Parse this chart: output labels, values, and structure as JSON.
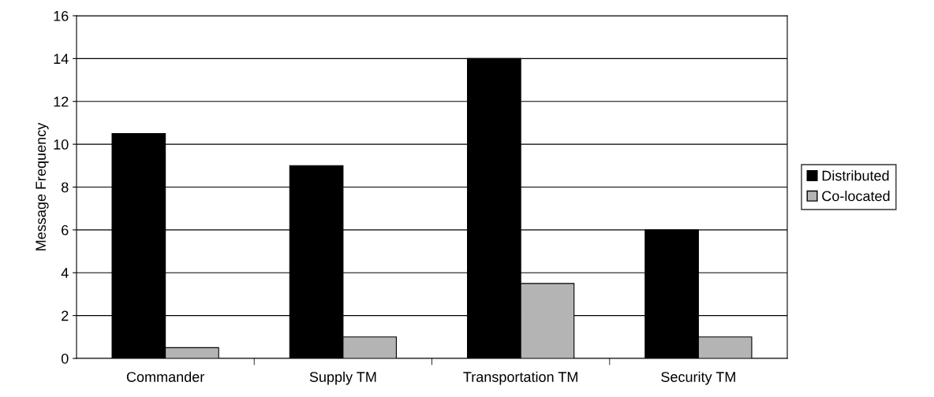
{
  "chart_data": {
    "type": "bar",
    "ylabel": "Message Frequency",
    "categories": [
      "Commander",
      "Supply TM",
      "Transportation TM",
      "Security TM"
    ],
    "series": [
      {
        "name": "Distributed",
        "color": "#000000",
        "values": [
          10.5,
          9,
          14,
          6
        ]
      },
      {
        "name": "Co-located",
        "color": "#b4b4b4",
        "values": [
          0.5,
          1,
          3.5,
          1
        ]
      }
    ],
    "ylim": [
      0,
      16
    ],
    "yticks": [
      0,
      2,
      4,
      6,
      8,
      10,
      12,
      14,
      16
    ],
    "grid": "y",
    "legend": "right"
  }
}
